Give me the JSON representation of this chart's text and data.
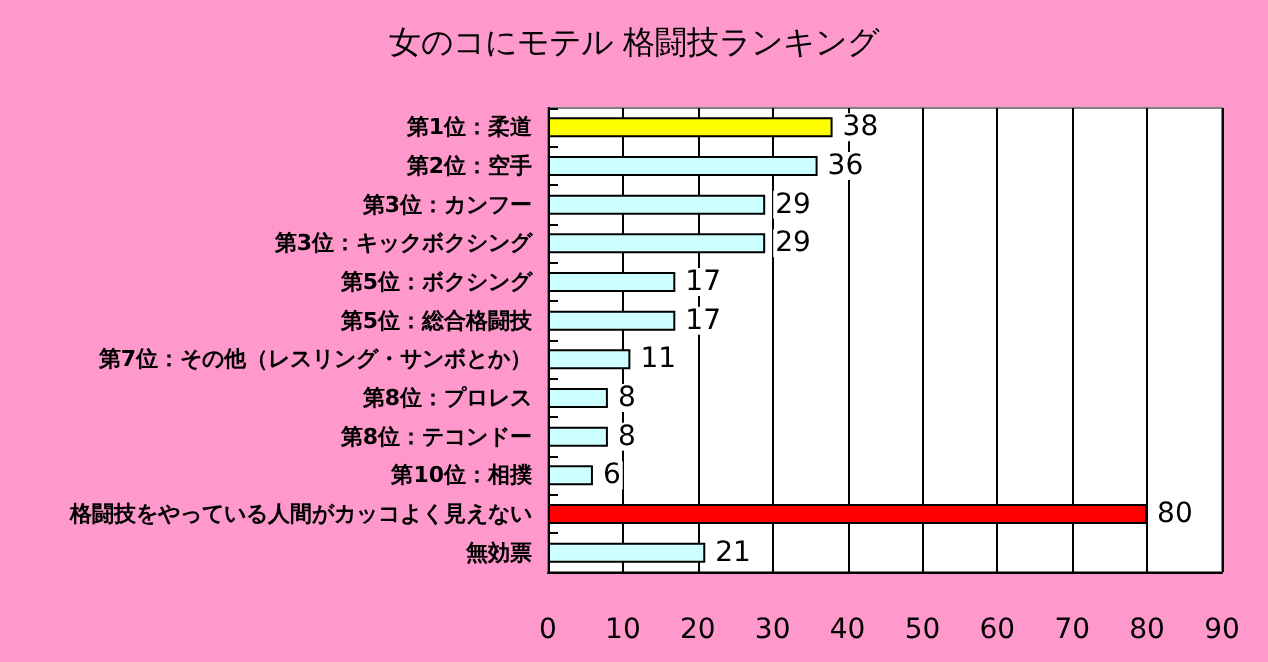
{
  "chart_data": {
    "type": "bar",
    "orientation": "horizontal",
    "title": "女のコにモテル 格闘技ランキング",
    "categories": [
      "第1位：柔道",
      "第2位：空手",
      "第3位：カンフー",
      "第3位：キックボクシング",
      "第5位：ボクシング",
      "第5位：総合格闘技",
      "第7位：その他（レスリング・サンボとか）",
      "第8位：プロレス",
      "第8位：テコンドー",
      "第10位：相撲",
      "格闘技をやっている人間がカッコよく見えない",
      "無効票"
    ],
    "values": [
      38,
      36,
      29,
      29,
      17,
      17,
      11,
      8,
      8,
      6,
      80,
      21
    ],
    "colors": [
      "#ffff00",
      "#ccffff",
      "#ccffff",
      "#ccffff",
      "#ccffff",
      "#ccffff",
      "#ccffff",
      "#ccffff",
      "#ccffff",
      "#ccffff",
      "#ff0000",
      "#ccffff"
    ],
    "xlim": [
      0,
      90
    ],
    "xticks": [
      0,
      10,
      20,
      30,
      40,
      50,
      60,
      70,
      80,
      90
    ],
    "grid": "x",
    "data_labels": true
  }
}
